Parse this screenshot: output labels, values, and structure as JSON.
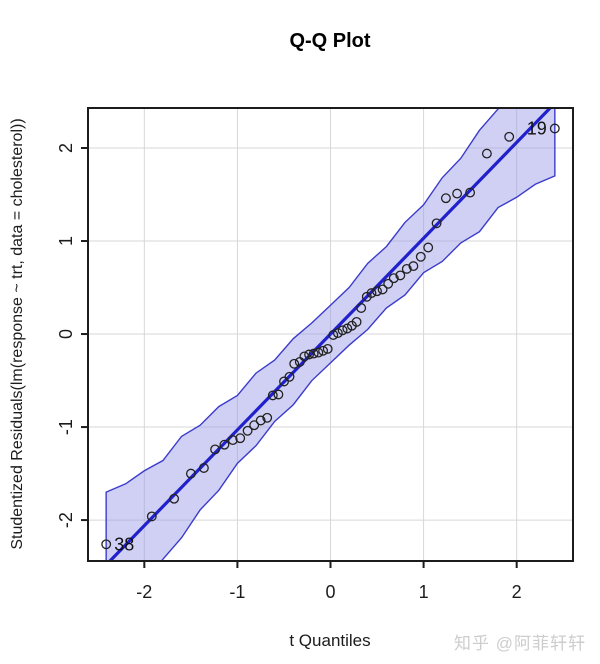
{
  "watermark": {
    "text": "知乎 @阿菲轩轩"
  },
  "chart_data": {
    "type": "scatter",
    "title": "Q-Q Plot",
    "xlabel": "t Quantiles",
    "ylabel": "Studentized Residuals(lm(response ~ trt, data = cholesterol))",
    "xlim": [
      -2.605,
      2.605
    ],
    "ylim": [
      -2.44,
      2.43
    ],
    "x_tick_values": [
      -2,
      -1,
      0,
      1,
      2
    ],
    "x_tick_labels": [
      "-2",
      "-1",
      "0",
      "1",
      "2"
    ],
    "y_tick_values": [
      -2,
      -1,
      0,
      1,
      2
    ],
    "y_tick_labels": [
      "-2",
      "-1",
      "0",
      "1",
      "2"
    ],
    "grid": true,
    "legend": "none",
    "points": {
      "x": [
        -2.41,
        -1.92,
        -1.68,
        -1.5,
        -1.36,
        -1.24,
        -1.14,
        -1.05,
        -0.97,
        -0.89,
        -0.82,
        -0.75,
        -0.68,
        -0.62,
        -0.56,
        -0.5,
        -0.44,
        -0.39,
        -0.33,
        -0.28,
        -0.23,
        -0.18,
        -0.13,
        -0.08,
        -0.03,
        0.03,
        0.08,
        0.13,
        0.18,
        0.23,
        0.28,
        0.33,
        0.39,
        0.44,
        0.5,
        0.56,
        0.62,
        0.68,
        0.75,
        0.82,
        0.89,
        0.97,
        1.05,
        1.14,
        1.24,
        1.36,
        1.5,
        1.68,
        1.92,
        2.41
      ],
      "y": [
        -2.26,
        -1.96,
        -1.77,
        -1.5,
        -1.44,
        -1.24,
        -1.19,
        -1.14,
        -1.12,
        -1.04,
        -0.98,
        -0.93,
        -0.9,
        -0.66,
        -0.65,
        -0.51,
        -0.46,
        -0.32,
        -0.3,
        -0.24,
        -0.22,
        -0.21,
        -0.2,
        -0.18,
        -0.16,
        -0.01,
        0.01,
        0.04,
        0.06,
        0.09,
        0.13,
        0.28,
        0.4,
        0.44,
        0.46,
        0.48,
        0.54,
        0.6,
        0.63,
        0.7,
        0.73,
        0.83,
        0.93,
        1.19,
        1.46,
        1.51,
        1.52,
        1.94,
        2.12,
        2.21
      ]
    },
    "labeled_points": [
      {
        "label": "38",
        "x": -2.41,
        "y": -2.26,
        "side": "right"
      },
      {
        "label": "19",
        "x": 2.41,
        "y": 2.21,
        "side": "left"
      }
    ],
    "reference_line": {
      "slope": 1.03,
      "intercept": 0.0
    },
    "envelope": {
      "x": [
        -2.41,
        -2.2,
        -2.0,
        -1.8,
        -1.6,
        -1.4,
        -1.2,
        -1.0,
        -0.8,
        -0.6,
        -0.4,
        -0.2,
        0.0,
        0.2,
        0.4,
        0.6,
        0.8,
        1.0,
        1.2,
        1.4,
        1.6,
        1.8,
        2.0,
        2.2,
        2.41
      ],
      "upper": [
        -1.7,
        -1.61,
        -1.47,
        -1.36,
        -1.1,
        -0.98,
        -0.78,
        -0.66,
        -0.42,
        -0.28,
        -0.05,
        0.12,
        0.31,
        0.5,
        0.76,
        0.94,
        1.2,
        1.39,
        1.68,
        1.89,
        2.19,
        2.42,
        2.7,
        3.0,
        3.28
      ],
      "lower": [
        -3.28,
        -3.0,
        -2.7,
        -2.42,
        -2.19,
        -1.89,
        -1.68,
        -1.39,
        -1.2,
        -0.94,
        -0.76,
        -0.5,
        -0.31,
        -0.12,
        0.05,
        0.28,
        0.42,
        0.66,
        0.78,
        0.98,
        1.1,
        1.36,
        1.47,
        1.61,
        1.7
      ]
    },
    "style": {
      "envelope_fill": "rgba(150,150,230,0.45)",
      "envelope_line": "#3c3ccc",
      "reference_color": "#2020cc",
      "point_stroke": "#222222",
      "grid_color": "#d7d7d7",
      "frame_color": "#1c1c1c",
      "point_radius": 4.3
    }
  }
}
